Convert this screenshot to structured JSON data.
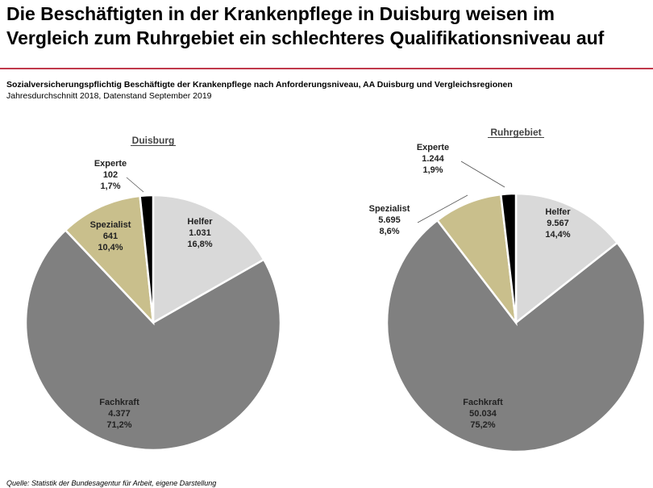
{
  "header": {
    "title": "Die Beschäftigten in der Krankenpflege in Duisburg weisen im\nVergleich zum Ruhrgebiet ein schlechteres Qualifikationsniveau auf",
    "subtitle": "Sozialversicherungspflichtig Beschäftigte der Krankenpflege nach Anforderungsniveau, AA Duisburg und Vergleichsregionen",
    "subtitle2": "Jahresdurchschnitt 2018, Datenstand September 2019"
  },
  "footer": {
    "source": "Quelle: Statistik der Bundesagentur für Arbeit, eigene Darstellung"
  },
  "colors": {
    "Helfer": "#d9d9d9",
    "Fachkraft": "#808080",
    "Spezialist": "#c9bf8c",
    "Experte": "#000000",
    "accent_rule": "#c0394b"
  },
  "chart_data": [
    {
      "type": "pie",
      "title": "Duisburg",
      "slices": [
        {
          "name": "Helfer",
          "label": "1.031",
          "value": 1031,
          "percent": "16,8%"
        },
        {
          "name": "Fachkraft",
          "label": "4.377",
          "value": 4377,
          "percent": "71,2%"
        },
        {
          "name": "Spezialist",
          "label": "641",
          "value": 641,
          "percent": "10,4%"
        },
        {
          "name": "Experte",
          "label": "102",
          "value": 102,
          "percent": "1,7%"
        }
      ]
    },
    {
      "type": "pie",
      "title": "Ruhrgebiet",
      "slices": [
        {
          "name": "Helfer",
          "label": "9.567",
          "value": 9567,
          "percent": "14,4%"
        },
        {
          "name": "Fachkraft",
          "label": "50.034",
          "value": 50034,
          "percent": "75,2%"
        },
        {
          "name": "Spezialist",
          "label": "5.695",
          "value": 5695,
          "percent": "8,6%"
        },
        {
          "name": "Experte",
          "label": "1.244",
          "value": 1244,
          "percent": "1,9%"
        }
      ]
    }
  ]
}
